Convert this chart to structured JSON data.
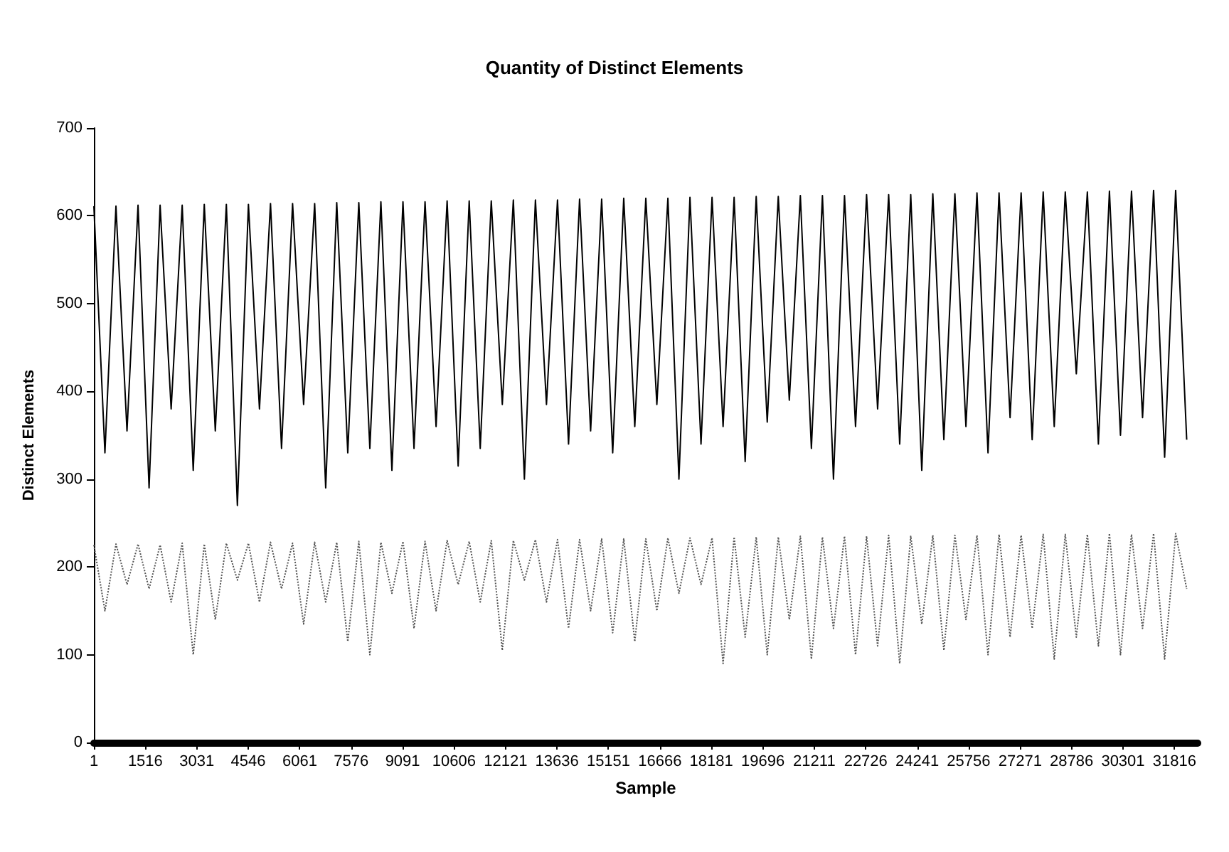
{
  "chart_data": {
    "type": "line",
    "title": "Quantity of Distinct Elements",
    "xlabel": "Sample",
    "ylabel": "Distinct Elements",
    "x": [
      1,
      326,
      651,
      976,
      1301,
      1626,
      1951,
      2276,
      2601,
      2926,
      3251,
      3576,
      3901,
      4226,
      4551,
      4876,
      5201,
      5526,
      5851,
      6176,
      6501,
      6826,
      7151,
      7476,
      7801,
      8126,
      8451,
      8776,
      9101,
      9426,
      9751,
      10076,
      10401,
      10726,
      11051,
      11376,
      11701,
      12026,
      12351,
      12676,
      13001,
      13326,
      13651,
      13976,
      14301,
      14626,
      14951,
      15276,
      15601,
      15926,
      16251,
      16576,
      16901,
      17226,
      17551,
      17876,
      18201,
      18526,
      18851,
      19176,
      19501,
      19826,
      20151,
      20476,
      20801,
      21126,
      21451,
      21776,
      22101,
      22426,
      22751,
      23076,
      23401,
      23726,
      24051,
      24376,
      24701,
      25026,
      25351,
      25676,
      26001,
      26326,
      26651,
      26976,
      27301,
      27626,
      27951,
      28276,
      28601,
      28926,
      29251,
      29576,
      29901,
      30226,
      30551,
      30876,
      31201,
      31526,
      31851,
      32176
    ],
    "series": [
      {
        "color": "#000000",
        "line_style": "solid",
        "values": [
          611,
          330,
          611,
          355,
          612,
          290,
          612,
          380,
          612,
          310,
          613,
          355,
          613,
          270,
          613,
          380,
          614,
          335,
          614,
          385,
          614,
          290,
          615,
          330,
          615,
          335,
          616,
          310,
          616,
          335,
          616,
          360,
          617,
          315,
          617,
          335,
          617,
          385,
          618,
          300,
          618,
          385,
          618,
          340,
          619,
          355,
          619,
          330,
          620,
          360,
          620,
          385,
          620,
          300,
          621,
          340,
          621,
          360,
          621,
          320,
          622,
          365,
          622,
          390,
          623,
          335,
          623,
          300,
          623,
          360,
          624,
          380,
          624,
          340,
          624,
          310,
          625,
          345,
          625,
          360,
          626,
          330,
          626,
          370,
          626,
          345,
          627,
          360,
          627,
          420,
          627,
          340,
          628,
          350,
          628,
          370,
          629,
          325,
          629,
          345
        ]
      },
      {
        "color": "#555555",
        "line_style": "dotted",
        "values": [
          225,
          150,
          226,
          180,
          226,
          175,
          225,
          160,
          227,
          100,
          226,
          140,
          227,
          185,
          227,
          160,
          228,
          175,
          227,
          135,
          228,
          160,
          228,
          115,
          229,
          100,
          228,
          170,
          229,
          130,
          229,
          150,
          230,
          180,
          229,
          160,
          230,
          105,
          230,
          185,
          231,
          160,
          231,
          130,
          231,
          150,
          232,
          125,
          232,
          115,
          232,
          150,
          233,
          170,
          233,
          180,
          233,
          90,
          234,
          120,
          234,
          100,
          234,
          140,
          235,
          95,
          234,
          130,
          235,
          100,
          235,
          110,
          236,
          90,
          235,
          135,
          236,
          105,
          236,
          140,
          236,
          100,
          237,
          120,
          236,
          130,
          237,
          95,
          237,
          120,
          237,
          110,
          238,
          100,
          237,
          130,
          238,
          95,
          238,
          175
        ]
      }
    ],
    "xlim": [
      1,
      32500
    ],
    "xticks": [
      1,
      1516,
      3031,
      4546,
      6061,
      7576,
      9091,
      10606,
      12121,
      13636,
      15151,
      16666,
      18181,
      19696,
      21211,
      22726,
      24241,
      25756,
      27271,
      28786,
      30301,
      31816
    ],
    "ylim": [
      0,
      700
    ],
    "yticks": [
      0,
      100,
      200,
      300,
      400,
      500,
      600,
      700
    ],
    "grid": false,
    "marker": "none"
  }
}
